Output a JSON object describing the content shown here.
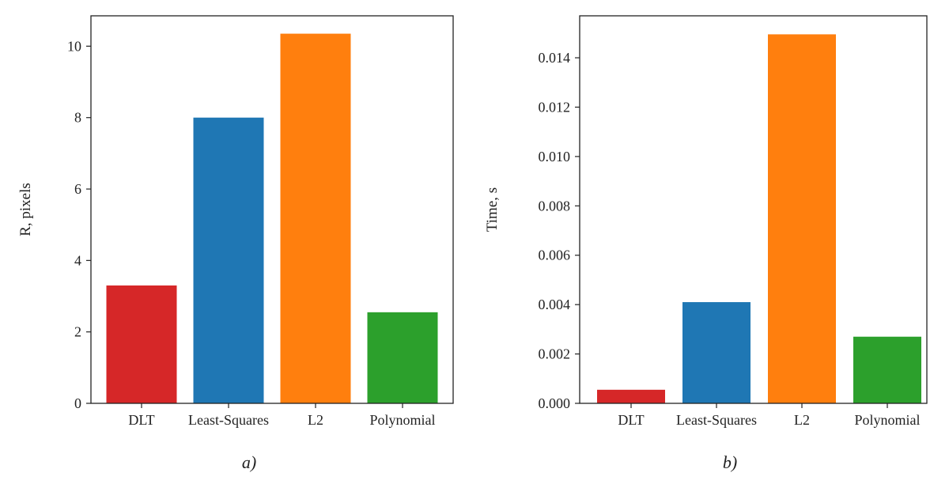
{
  "colors": {
    "DLT": "#d62728",
    "Least-Squares": "#1f77b4",
    "L2": "#ff7f0e",
    "Polynomial": "#2ca02c"
  },
  "chart_data": [
    {
      "type": "bar",
      "panel_label": "a)",
      "categories": [
        "DLT",
        "Least-Squares",
        "L2",
        "Polynomial"
      ],
      "values": [
        3.3,
        8.0,
        10.35,
        2.55
      ],
      "ylabel": "R, pixels",
      "xlabel": "",
      "ylim": [
        0,
        10.85
      ],
      "yticks": [
        0,
        2,
        4,
        6,
        8,
        10
      ],
      "ytick_labels": [
        "0",
        "2",
        "4",
        "6",
        "8",
        "10"
      ],
      "grid": false,
      "legend": "none"
    },
    {
      "type": "bar",
      "panel_label": "b)",
      "categories": [
        "DLT",
        "Least-Squares",
        "L2",
        "Polynomial"
      ],
      "values": [
        0.00055,
        0.0041,
        0.01495,
        0.0027
      ],
      "ylabel": "Time, s",
      "xlabel": "",
      "ylim": [
        0,
        0.0157
      ],
      "yticks": [
        0,
        0.002,
        0.004,
        0.006,
        0.008,
        0.01,
        0.012,
        0.014
      ],
      "ytick_labels": [
        "0.000",
        "0.002",
        "0.004",
        "0.006",
        "0.008",
        "0.010",
        "0.012",
        "0.014"
      ],
      "grid": false,
      "legend": "none"
    }
  ]
}
